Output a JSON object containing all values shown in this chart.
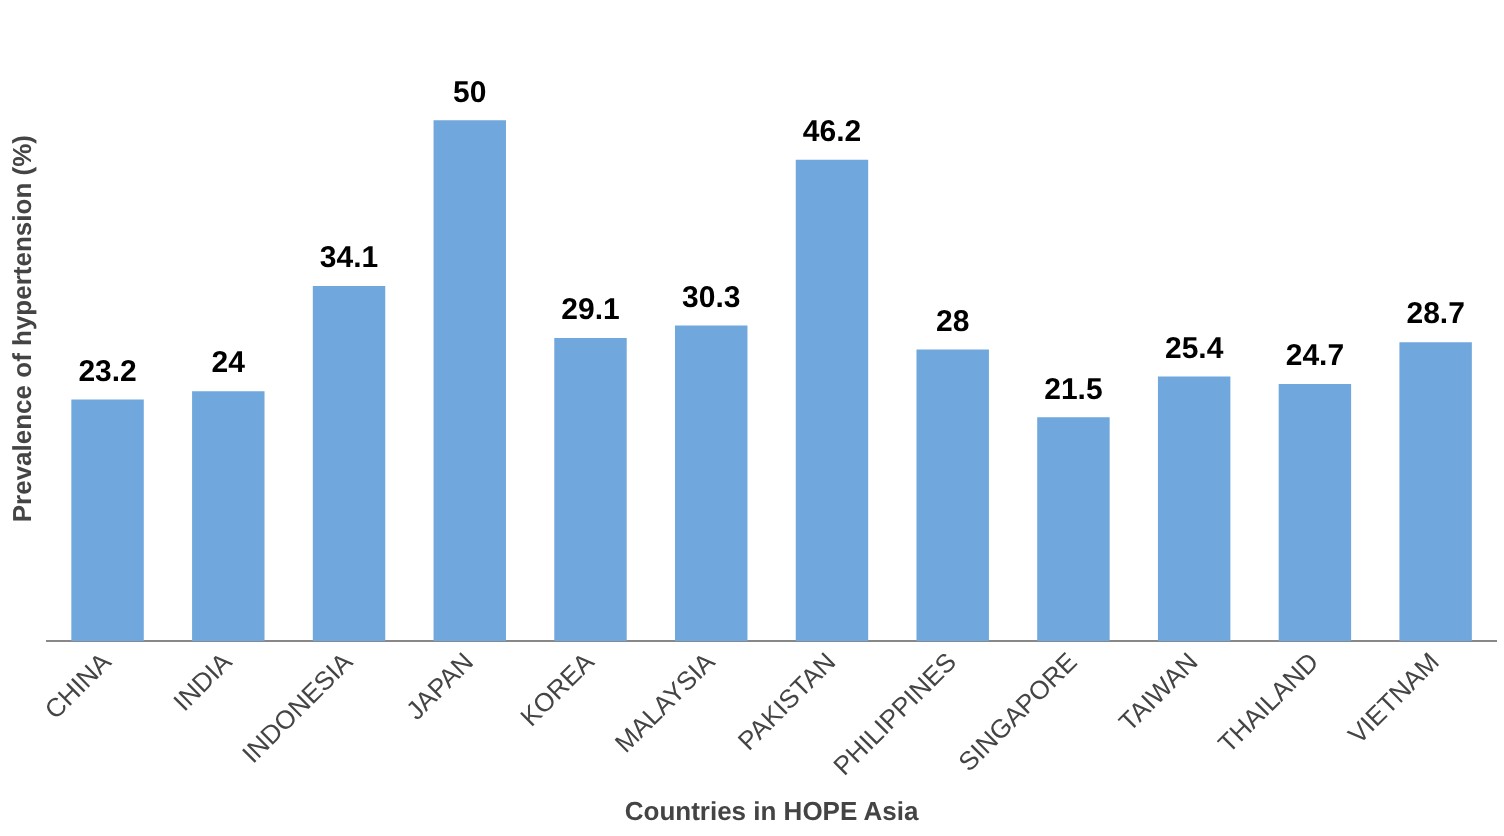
{
  "chart_data": {
    "type": "bar",
    "xlabel": "Countries in HOPE Asia",
    "ylabel": "Prevalence of hypertension (%)",
    "categories": [
      "CHINA",
      "INDIA",
      "INDONESIA",
      "JAPAN",
      "KOREA",
      "MALAYSIA",
      "PAKISTAN",
      "PHILIPPINES",
      "SINGAPORE",
      "TAIWAN",
      "THAILAND",
      "VIETNAM"
    ],
    "values": [
      23.2,
      24,
      34.1,
      50,
      29.1,
      30.3,
      46.2,
      28,
      21.5,
      25.4,
      24.7,
      28.7
    ],
    "color": "#70a7dc",
    "grid": false,
    "legend": false,
    "tick_labels": "x",
    "data_labels": true
  }
}
